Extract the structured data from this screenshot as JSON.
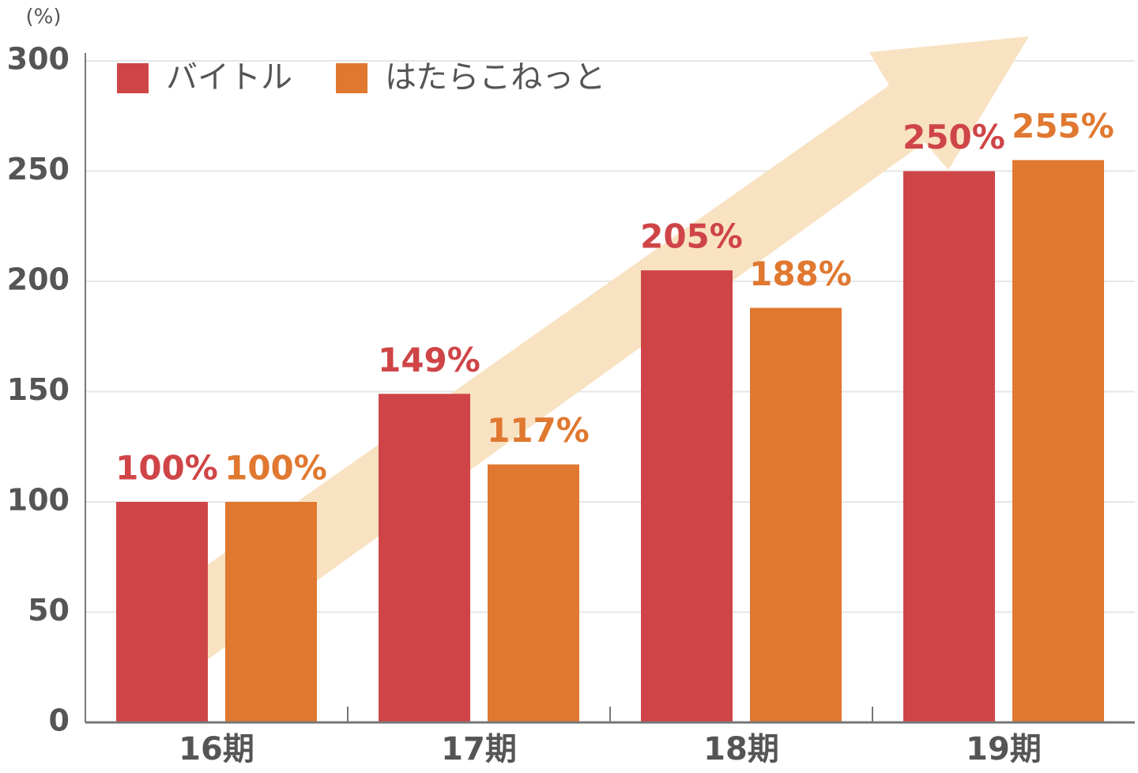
{
  "chart_data": {
    "type": "bar",
    "y_label": "(%)",
    "categories": [
      "16期",
      "17期",
      "18期",
      "19期"
    ],
    "series": [
      {
        "name": "バイトル",
        "color": "#cf4547",
        "values": [
          100,
          149,
          205,
          250
        ],
        "value_labels": [
          "100%",
          "149%",
          "205%",
          "250%"
        ]
      },
      {
        "name": "はたらこねっと",
        "color": "#e07830",
        "values": [
          100,
          117,
          188,
          255
        ],
        "value_labels": [
          "100%",
          "117%",
          "188%",
          "255%"
        ]
      }
    ],
    "ylim": [
      0,
      300
    ],
    "yticks": [
      0,
      50,
      100,
      150,
      200,
      250,
      300
    ],
    "grid": true,
    "legend": "top-left"
  }
}
